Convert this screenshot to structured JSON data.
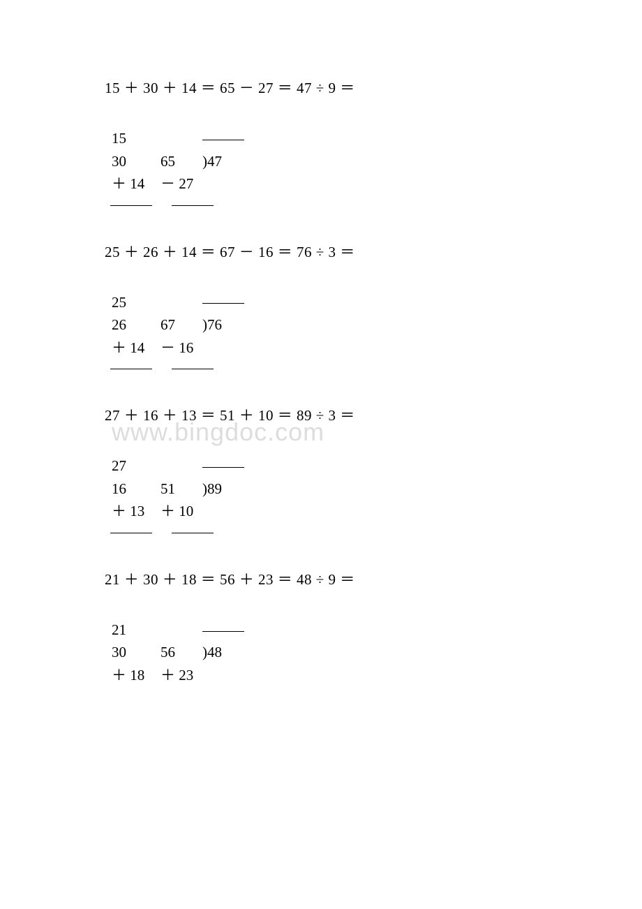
{
  "watermark_text": "www.bingdoc.com",
  "watermark_color": "#dddddd",
  "text_color": "#000000",
  "background_color": "#ffffff",
  "font_size_main": 21,
  "problems": [
    {
      "equation": "15 ＋ 30 ＋ 14 ＝   65 － 27 ＝  47 ÷ 9 ＝",
      "addition": {
        "n1": "15",
        "n2": "30",
        "op": "＋",
        "n3": "14"
      },
      "second": {
        "n1": "65",
        "op": "－",
        "n2": "27"
      },
      "division": {
        "dividend": "47"
      }
    },
    {
      "equation": "25 ＋ 26 ＋ 14 ＝   67 － 16 ＝  76 ÷ 3 ＝",
      "addition": {
        "n1": "25",
        "n2": "26",
        "op": "＋",
        "n3": "14"
      },
      "second": {
        "n1": "67",
        "op": "－",
        "n2": "16"
      },
      "division": {
        "dividend": "76"
      }
    },
    {
      "equation": "27 ＋ 16 ＋ 13 ＝   51 ＋ 10 ＝  89 ÷ 3 ＝",
      "addition": {
        "n1": "27",
        "n2": "16",
        "op": "＋",
        "n3": "13"
      },
      "second": {
        "n1": "51",
        "op": "＋",
        "n2": "10"
      },
      "division": {
        "dividend": "89"
      }
    },
    {
      "equation": "21 ＋ 30 ＋ 18 ＝   56 ＋ 23 ＝  48 ÷ 9 ＝",
      "addition": {
        "n1": "21",
        "n2": "30",
        "op": "＋",
        "n3": "18"
      },
      "second": {
        "n1": "56",
        "op": "＋",
        "n2": "23"
      },
      "division": {
        "dividend": "48"
      }
    }
  ]
}
